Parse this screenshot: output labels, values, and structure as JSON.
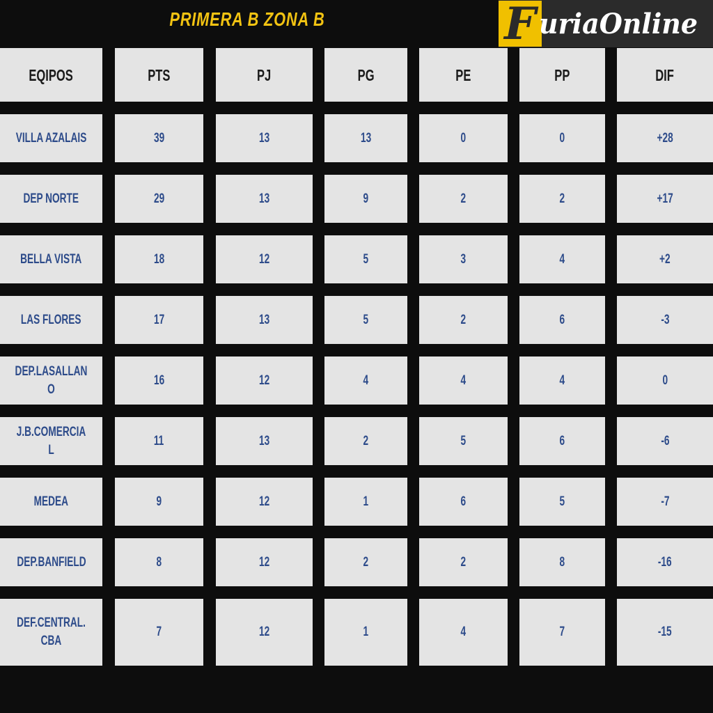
{
  "title": "PRIMERA B ZONA B",
  "logo": {
    "text": "FuriaOnline",
    "colors": {
      "yellow": "#f0c000",
      "dark": "#2b2b2b"
    }
  },
  "headers": [
    "EQIPOS",
    "PTS",
    "PJ",
    "PG",
    "PE",
    "PP",
    "DIF"
  ],
  "rows": [
    [
      "VILLA AZALAIS",
      "39",
      "13",
      "13",
      "0",
      "0",
      "+28"
    ],
    [
      "DEP NORTE",
      "29",
      "13",
      "9",
      "2",
      "2",
      "+17"
    ],
    [
      "BELLA VISTA",
      "18",
      "12",
      "5",
      "3",
      "4",
      "+2"
    ],
    [
      "LAS FLORES",
      "17",
      "13",
      "5",
      "2",
      "6",
      "-3"
    ],
    [
      "DEP.LASALLANO",
      "16",
      "12",
      "4",
      "4",
      "4",
      "0"
    ],
    [
      "J.B.COMERCIAL",
      "11",
      "13",
      "2",
      "5",
      "6",
      "-6"
    ],
    [
      "MEDEA",
      "9",
      "12",
      "1",
      "6",
      "5",
      "-7"
    ],
    [
      "DEP.BANFIELD",
      "8",
      "12",
      "2",
      "2",
      "8",
      "-16"
    ],
    [
      "DEF.CENTRAL.CBA",
      "7",
      "12",
      "1",
      "4",
      "7",
      "-15"
    ]
  ]
}
